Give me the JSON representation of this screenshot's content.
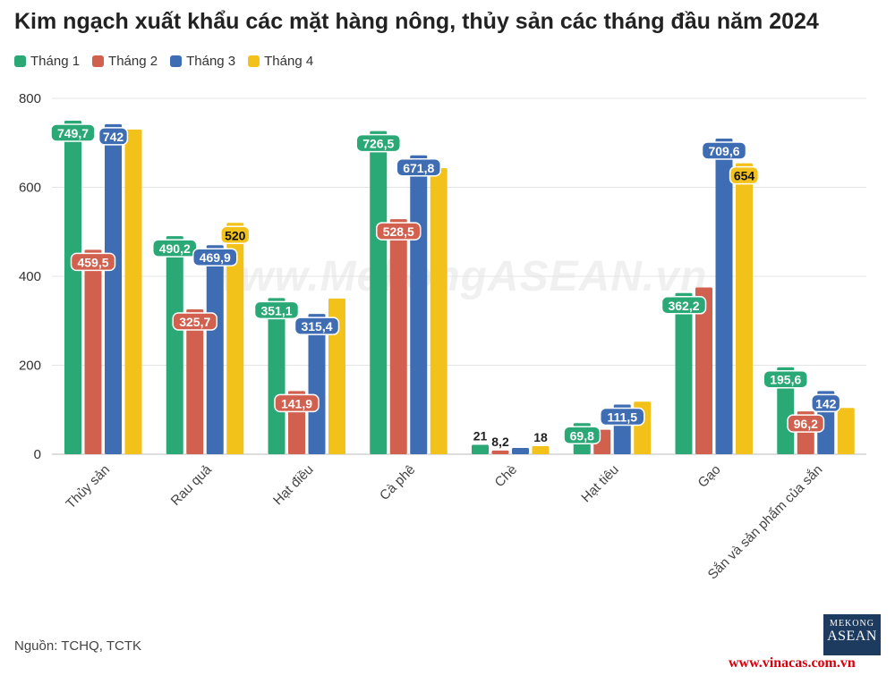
{
  "title": "Kim ngạch xuất khẩu các mặt hàng nông, thủy sản các tháng đầu năm 2024",
  "source": "Nguồn: TCHQ, TCTK",
  "logo": {
    "line1": "MEKONG",
    "line2": "ASEAN"
  },
  "website": "www.vinacas.com.vn",
  "watermark": "www.MekongASEAN.vn",
  "chart_data": {
    "type": "bar",
    "categories": [
      "Thủy sản",
      "Rau quả",
      "Hạt điều",
      "Cà phê",
      "Chè",
      "Hạt tiêu",
      "Gạo",
      "Sắn và sản phẩm của sắn"
    ],
    "series": [
      {
        "name": "Tháng 1",
        "color": "#2aa876",
        "values": [
          749.7,
          490.2,
          351.1,
          726.5,
          21,
          69.8,
          362.2,
          195.6
        ],
        "labels": [
          "749,7",
          "490,2",
          "351,1",
          "726,5",
          "21",
          "69,8",
          "362,2",
          "195,6"
        ]
      },
      {
        "name": "Tháng 2",
        "color": "#d2604f",
        "values": [
          459.5,
          325.7,
          141.9,
          528.5,
          8.2,
          55,
          375,
          96.2
        ],
        "labels": [
          "459,5",
          "325,7",
          "141,9",
          "528,5",
          "8,2",
          "",
          "",
          "96,2"
        ]
      },
      {
        "name": "Tháng 3",
        "color": "#3f6db3",
        "values": [
          742,
          469.9,
          315.4,
          671.8,
          14,
          111.5,
          709.6,
          142
        ],
        "labels": [
          "742",
          "469,9",
          "315,4",
          "671,8",
          "",
          "111,5",
          "709,6",
          "142"
        ]
      },
      {
        "name": "Tháng 4",
        "color": "#f2c21b",
        "values": [
          730,
          520,
          350,
          643,
          18,
          118,
          654,
          104
        ],
        "labels": [
          "",
          "520",
          "",
          "",
          "18",
          "",
          "654",
          ""
        ]
      }
    ],
    "ylim": [
      0,
      800
    ],
    "yticks": [
      0,
      200,
      400,
      600,
      800
    ],
    "grid": true,
    "legend_position": "top-left"
  }
}
